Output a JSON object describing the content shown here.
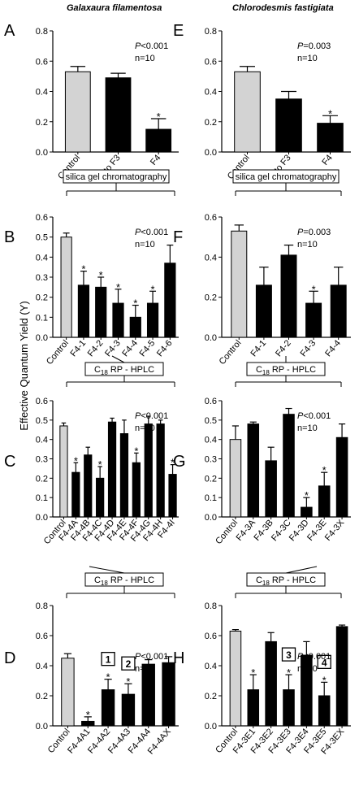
{
  "y_axis_label": "Effective Quantum Yield (Y)",
  "species": [
    "Galaxaura filamentosa",
    "Chlorodesmis fastigiata"
  ],
  "method_boxes": [
    {
      "id": "ae",
      "text": "silica gel chromatography"
    },
    {
      "id": "ef",
      "text": "silica gel chromatography"
    },
    {
      "id": "bc",
      "text_pre": "C",
      "text_sub": "18",
      "text_post": " RP - HPLC"
    },
    {
      "id": "fg",
      "text_pre": "C",
      "text_sub": "18",
      "text_post": " RP - HPLC"
    },
    {
      "id": "cd",
      "text_pre": "C",
      "text_sub": "18",
      "text_post": " RP - HPLC"
    },
    {
      "id": "gh",
      "text_pre": "C",
      "text_sub": "18",
      "text_post": " RP - HPLC"
    }
  ],
  "colors": {
    "control": "#d3d3d3",
    "treatment": "#000000"
  },
  "chart_data": [
    {
      "panel": "A",
      "type": "bar",
      "species": "Galaxaura filamentosa",
      "categories": [
        "Control",
        "F1 to F3",
        "F4"
      ],
      "values": [
        0.53,
        0.49,
        0.15
      ],
      "errors": [
        0.035,
        0.03,
        0.07
      ],
      "significant": [
        false,
        false,
        true
      ],
      "p_text": "P<0.001",
      "n_text": "n=10",
      "ylim": [
        0,
        0.8
      ],
      "yticks": [
        "0.0",
        "0.2",
        "0.4",
        "0.6",
        "0.8"
      ]
    },
    {
      "panel": "B",
      "type": "bar",
      "categories": [
        "Control",
        "F4-1",
        "F4-2",
        "F4-3",
        "F4-4",
        "F4-5",
        "F4-6"
      ],
      "values": [
        0.5,
        0.26,
        0.25,
        0.17,
        0.1,
        0.17,
        0.37
      ],
      "errors": [
        0.02,
        0.07,
        0.05,
        0.07,
        0.06,
        0.06,
        0.09
      ],
      "significant": [
        false,
        true,
        true,
        true,
        true,
        true,
        false
      ],
      "p_text": "P<0.001",
      "n_text": "n=10",
      "ylim": [
        0,
        0.6
      ],
      "yticks": [
        "0.0",
        "0.1",
        "0.2",
        "0.3",
        "0.4",
        "0.5",
        "0.6"
      ]
    },
    {
      "panel": "C",
      "type": "bar",
      "categories": [
        "Control",
        "F4-4A",
        "F4-4B",
        "F4-4C",
        "F4-4D",
        "F4-4E",
        "F4-4F",
        "F4-4G",
        "F4-4H",
        "F4-4I"
      ],
      "values": [
        0.47,
        0.23,
        0.32,
        0.2,
        0.49,
        0.43,
        0.28,
        0.48,
        0.48,
        0.22
      ],
      "errors": [
        0.015,
        0.05,
        0.04,
        0.06,
        0.02,
        0.07,
        0.05,
        0.04,
        0.02,
        0.05
      ],
      "significant": [
        false,
        true,
        false,
        true,
        false,
        false,
        true,
        false,
        false,
        true
      ],
      "p_text": "P<0.001",
      "n_text": "n=10",
      "ylim": [
        0,
        0.6
      ],
      "yticks": [
        "0.0",
        "0.1",
        "0.2",
        "0.3",
        "0.4",
        "0.5",
        "0.6"
      ]
    },
    {
      "panel": "D",
      "type": "bar",
      "categories": [
        "Control",
        "F4-4A1",
        "F4-4A2",
        "F4-4A3",
        "F4-4A4",
        "F4-4AX"
      ],
      "values": [
        0.45,
        0.03,
        0.24,
        0.21,
        0.41,
        0.42
      ],
      "errors": [
        0.03,
        0.03,
        0.07,
        0.07,
        0.03,
        0.04
      ],
      "significant": [
        false,
        true,
        true,
        true,
        false,
        false
      ],
      "labels": {
        "2": "1",
        "3": "2"
      },
      "p_text": "P<0.001",
      "n_text": "n=10",
      "ylim": [
        0,
        0.8
      ],
      "yticks": [
        "0.0",
        "0.2",
        "0.4",
        "0.6",
        "0.8"
      ]
    },
    {
      "panel": "E",
      "type": "bar",
      "species": "Chlorodesmis fastigiata",
      "categories": [
        "Control",
        "F1 to F3",
        "F4"
      ],
      "values": [
        0.53,
        0.35,
        0.19
      ],
      "errors": [
        0.035,
        0.05,
        0.05
      ],
      "significant": [
        false,
        false,
        true
      ],
      "p_text": "P=0.003",
      "n_text": "n=10",
      "ylim": [
        0,
        0.8
      ],
      "yticks": [
        "0.0",
        "0.2",
        "0.4",
        "0.6",
        "0.8"
      ]
    },
    {
      "panel": "F",
      "type": "bar",
      "categories": [
        "Control",
        "F4-1",
        "F4-2",
        "F4-3",
        "F4-4"
      ],
      "values": [
        0.53,
        0.26,
        0.41,
        0.17,
        0.26
      ],
      "errors": [
        0.03,
        0.09,
        0.05,
        0.06,
        0.09
      ],
      "significant": [
        false,
        false,
        false,
        true,
        false
      ],
      "p_text": "P=0.003",
      "n_text": "n=10",
      "ylim": [
        0,
        0.6
      ],
      "yticks": [
        "0.0",
        "0.2",
        "0.4",
        "0.6"
      ]
    },
    {
      "panel": "G",
      "type": "bar",
      "categories": [
        "Control",
        "F4-3A",
        "F4-3B",
        "F4-3C",
        "F4-3D",
        "F4-3E",
        "F4-3X"
      ],
      "values": [
        0.4,
        0.48,
        0.29,
        0.53,
        0.05,
        0.16,
        0.41
      ],
      "errors": [
        0.07,
        0.01,
        0.07,
        0.03,
        0.05,
        0.07,
        0.07
      ],
      "significant": [
        false,
        false,
        false,
        false,
        true,
        true,
        false
      ],
      "p_text": "P<0.001",
      "n_text": "n=10",
      "ylim": [
        0,
        0.6
      ],
      "yticks": [
        "0.0",
        "0.1",
        "0.2",
        "0.3",
        "0.4",
        "0.5",
        "0.6"
      ]
    },
    {
      "panel": "H",
      "type": "bar",
      "categories": [
        "Control",
        "F4-3E1",
        "F4-3E2",
        "F4-3E3",
        "F4-3E4",
        "F4-3E5",
        "F4-3EX"
      ],
      "values": [
        0.63,
        0.24,
        0.56,
        0.24,
        0.47,
        0.2,
        0.66
      ],
      "errors": [
        0.01,
        0.1,
        0.06,
        0.1,
        0.09,
        0.09,
        0.01
      ],
      "significant": [
        false,
        true,
        false,
        true,
        false,
        true,
        false
      ],
      "labels": {
        "3": "3",
        "5": "4"
      },
      "p_text": "P<0.001",
      "n_text": "n=10",
      "ylim": [
        0,
        0.8
      ],
      "yticks": [
        "0.0",
        "0.2",
        "0.4",
        "0.6",
        "0.8"
      ]
    }
  ]
}
